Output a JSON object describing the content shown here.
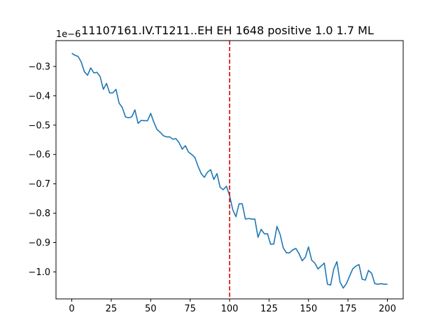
{
  "chart_data": {
    "type": "line",
    "title": "11107161.IV.T1211..EH EH 1648 positive 1.0 1.7 ML",
    "xlabel": "",
    "ylabel": "",
    "y_offset_label": "1e−6",
    "x_ticks": [
      "0",
      "25",
      "50",
      "75",
      "100",
      "125",
      "150",
      "175",
      "200"
    ],
    "y_ticks": [
      "−1.0",
      "−0.9",
      "−0.8",
      "−0.7",
      "−0.6",
      "−0.5",
      "−0.4",
      "−0.3"
    ],
    "xlim": [
      -10,
      210
    ],
    "ylim_scaled": [
      -1.092,
      -0.212
    ],
    "y_scale": 1e-06,
    "grid": false,
    "legend": "none",
    "series": [
      {
        "color": "#1f77b4",
        "x": [
          0,
          2,
          4,
          6,
          8,
          10,
          12,
          14,
          16,
          18,
          20,
          22,
          24,
          26,
          28,
          30,
          32,
          34,
          36,
          38,
          40,
          42,
          44,
          46,
          48,
          50,
          52,
          54,
          56,
          58,
          60,
          62,
          64,
          66,
          68,
          70,
          72,
          74,
          76,
          78,
          80,
          82,
          84,
          86,
          88,
          90,
          92,
          94,
          96,
          98,
          100,
          102,
          104,
          106,
          108,
          110,
          112,
          114,
          116,
          118,
          120,
          122,
          124,
          126,
          128,
          130,
          132,
          134,
          136,
          138,
          140,
          142,
          144,
          146,
          148,
          150,
          152,
          154,
          156,
          158,
          160,
          162,
          164,
          166,
          168,
          170,
          172,
          174,
          176,
          178,
          180,
          182,
          184,
          186,
          188,
          190,
          192,
          194,
          196,
          198,
          200
        ],
        "values": [
          -0.255,
          -0.262,
          -0.266,
          -0.285,
          -0.318,
          -0.33,
          -0.305,
          -0.322,
          -0.32,
          -0.335,
          -0.378,
          -0.358,
          -0.39,
          -0.39,
          -0.378,
          -0.425,
          -0.44,
          -0.472,
          -0.475,
          -0.472,
          -0.448,
          -0.494,
          -0.484,
          -0.485,
          -0.485,
          -0.46,
          -0.49,
          -0.515,
          -0.524,
          -0.536,
          -0.54,
          -0.54,
          -0.548,
          -0.546,
          -0.56,
          -0.582,
          -0.57,
          -0.592,
          -0.6,
          -0.61,
          -0.64,
          -0.665,
          -0.678,
          -0.66,
          -0.652,
          -0.685,
          -0.665,
          -0.712,
          -0.72,
          -0.708,
          -0.74,
          -0.788,
          -0.812,
          -0.768,
          -0.768,
          -0.82,
          -0.818,
          -0.82,
          -0.82,
          -0.882,
          -0.855,
          -0.87,
          -0.87,
          -0.906,
          -0.905,
          -0.845,
          -0.872,
          -0.918,
          -0.935,
          -0.935,
          -0.925,
          -0.92,
          -0.938,
          -0.962,
          -0.95,
          -0.915,
          -0.96,
          -0.97,
          -0.99,
          -0.98,
          -0.97,
          -1.042,
          -1.045,
          -0.99,
          -0.965,
          -1.035,
          -1.055,
          -1.04,
          -1.015,
          -0.99,
          -0.98,
          -0.975,
          -1.025,
          -1.028,
          -0.995,
          -1.005,
          -1.04,
          -1.042,
          -1.04,
          -1.042,
          -1.042
        ]
      }
    ],
    "vline": {
      "x": 100,
      "color": "#e00000",
      "style": "dashed"
    }
  }
}
